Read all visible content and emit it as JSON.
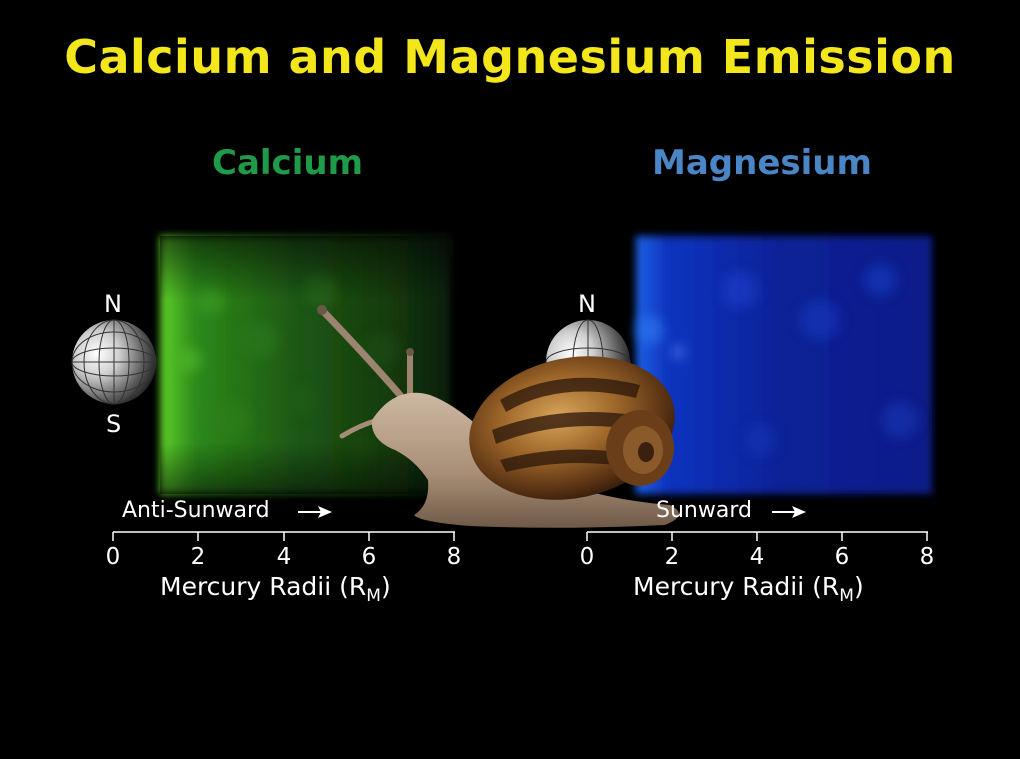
{
  "title": "Calcium and Magnesium Emission",
  "colors": {
    "title": "#f3e61b",
    "calcium": "#1f9a48",
    "magnesium": "#4a86c6"
  },
  "panels": [
    {
      "label": "Calcium",
      "pole_north": "N",
      "pole_south": "S",
      "direction": "Anti-Sunward",
      "ticks": [
        "0",
        "2",
        "4",
        "6",
        "8"
      ],
      "axis_title": "Mercury Radii (R",
      "axis_sub": "M",
      "axis_close": ")"
    },
    {
      "label": "Magnesium",
      "pole_north": "N",
      "direction": "Sunward",
      "ticks": [
        "0",
        "2",
        "4",
        "6",
        "8"
      ],
      "axis_title": "Mercury Radii (R",
      "axis_sub": "M",
      "axis_close": ")"
    }
  ]
}
